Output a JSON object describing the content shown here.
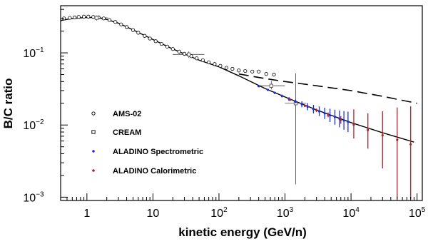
{
  "chart_data": {
    "type": "scatter",
    "title": "",
    "xlabel": "kinetic energy (GeV/n)",
    "ylabel": "B/C ratio",
    "xscale": "log",
    "yscale": "log",
    "xlim": [
      0.4,
      120000
    ],
    "ylim": [
      0.0009,
      0.45
    ],
    "grid": false,
    "legend_position": "bottom-left",
    "x_ticks": [
      {
        "base": "1",
        "exp": ""
      },
      {
        "base": "10",
        "exp": ""
      },
      {
        "base": "10",
        "exp": "2"
      },
      {
        "base": "10",
        "exp": "3"
      },
      {
        "base": "10",
        "exp": "4"
      },
      {
        "base": "10",
        "exp": "5"
      }
    ],
    "y_ticks": [
      {
        "base": "10",
        "exp": "−3"
      },
      {
        "base": "10",
        "exp": "−2"
      },
      {
        "base": "10",
        "exp": "−1"
      }
    ],
    "legend": [
      {
        "label": "AMS-02",
        "marker": "open-circle",
        "color": "#000000"
      },
      {
        "label": "CREAM",
        "marker": "open-square",
        "color": "#000000"
      },
      {
        "label": "ALADINO Spectrometric",
        "marker": "dot",
        "color": "#1a2de6"
      },
      {
        "label": "ALADINO Calorimetric",
        "marker": "dot",
        "color": "#b0232a"
      }
    ],
    "colors": {
      "ams02": "#000000",
      "cream": "#444444",
      "spectrometric": "#1a2de6",
      "calorimetric": "#b0232a",
      "axis": "#000000"
    },
    "series": [
      {
        "name": "AMS-02",
        "marker": "open-circle",
        "points": [
          {
            "x": 0.45,
            "y": 0.3
          },
          {
            "x": 0.55,
            "y": 0.305
          },
          {
            "x": 0.65,
            "y": 0.31
          },
          {
            "x": 0.75,
            "y": 0.315
          },
          {
            "x": 0.9,
            "y": 0.318
          },
          {
            "x": 1.05,
            "y": 0.318
          },
          {
            "x": 1.25,
            "y": 0.315
          },
          {
            "x": 1.5,
            "y": 0.31
          },
          {
            "x": 1.8,
            "y": 0.3
          },
          {
            "x": 2.2,
            "y": 0.285
          },
          {
            "x": 2.7,
            "y": 0.268
          },
          {
            "x": 3.3,
            "y": 0.248
          },
          {
            "x": 4,
            "y": 0.228
          },
          {
            "x": 5,
            "y": 0.207
          },
          {
            "x": 6,
            "y": 0.19
          },
          {
            "x": 7.5,
            "y": 0.172
          },
          {
            "x": 9,
            "y": 0.158
          },
          {
            "x": 11,
            "y": 0.145
          },
          {
            "x": 13.5,
            "y": 0.133
          },
          {
            "x": 16.5,
            "y": 0.122
          },
          {
            "x": 20,
            "y": 0.113
          },
          {
            "x": 25,
            "y": 0.104
          },
          {
            "x": 30,
            "y": 0.097
          },
          {
            "x": 38,
            "y": 0.09
          },
          {
            "x": 46,
            "y": 0.084
          },
          {
            "x": 57,
            "y": 0.079
          },
          {
            "x": 70,
            "y": 0.074
          },
          {
            "x": 86,
            "y": 0.07
          },
          {
            "x": 105,
            "y": 0.066
          },
          {
            "x": 130,
            "y": 0.062
          },
          {
            "x": 160,
            "y": 0.06
          },
          {
            "x": 200,
            "y": 0.057
          },
          {
            "x": 250,
            "y": 0.056
          },
          {
            "x": 320,
            "y": 0.055
          },
          {
            "x": 400,
            "y": 0.055
          },
          {
            "x": 520,
            "y": 0.051
          },
          {
            "x": 680,
            "y": 0.05
          }
        ]
      },
      {
        "name": "CREAM",
        "marker": "open-square",
        "points": [
          {
            "x": 1.4,
            "y": 0.305,
            "xlo": 0.9,
            "xhi": 2.1,
            "ylo": 0.28,
            "yhi": 0.33
          },
          {
            "x": 35,
            "y": 0.095,
            "xlo": 20,
            "xhi": 60,
            "ylo": 0.085,
            "yhi": 0.105
          },
          {
            "x": 620,
            "y": 0.035,
            "xlo": 380,
            "xhi": 1000,
            "ylo": 0.031,
            "yhi": 0.041
          },
          {
            "x": 1450,
            "y": 0.02,
            "xlo": 1000,
            "xhi": 2100,
            "ylo": 0.0015,
            "yhi": 0.052
          }
        ]
      },
      {
        "name": "ALADINO Spectrometric",
        "marker": "dot",
        "points": [
          {
            "x": 400,
            "y": 0.0345,
            "ylo": 0.0336,
            "yhi": 0.0354
          },
          {
            "x": 550,
            "y": 0.0307,
            "ylo": 0.0298,
            "yhi": 0.0316
          },
          {
            "x": 700,
            "y": 0.0279,
            "ylo": 0.0269,
            "yhi": 0.0289
          },
          {
            "x": 900,
            "y": 0.0252,
            "ylo": 0.0241,
            "yhi": 0.0264
          },
          {
            "x": 1150,
            "y": 0.0229,
            "ylo": 0.0216,
            "yhi": 0.0243
          },
          {
            "x": 1450,
            "y": 0.0209,
            "ylo": 0.0195,
            "yhi": 0.0226
          },
          {
            "x": 1800,
            "y": 0.0193,
            "ylo": 0.0176,
            "yhi": 0.0213
          },
          {
            "x": 2200,
            "y": 0.0179,
            "ylo": 0.016,
            "yhi": 0.0201
          },
          {
            "x": 2700,
            "y": 0.0166,
            "ylo": 0.0145,
            "yhi": 0.019
          },
          {
            "x": 3300,
            "y": 0.0155,
            "ylo": 0.0133,
            "yhi": 0.0181
          },
          {
            "x": 4000,
            "y": 0.0145,
            "ylo": 0.0121,
            "yhi": 0.0174
          },
          {
            "x": 4800,
            "y": 0.0136,
            "ylo": 0.011,
            "yhi": 0.0168
          },
          {
            "x": 5700,
            "y": 0.0129,
            "ylo": 0.0101,
            "yhi": 0.0163
          },
          {
            "x": 6700,
            "y": 0.0122,
            "ylo": 0.0093,
            "yhi": 0.0159
          },
          {
            "x": 7800,
            "y": 0.0116,
            "ylo": 0.0086,
            "yhi": 0.0156
          },
          {
            "x": 9000,
            "y": 0.0111,
            "ylo": 0.008,
            "yhi": 0.0153
          }
        ]
      },
      {
        "name": "ALADINO Calorimetric",
        "marker": "dot",
        "points": [
          {
            "x": 1200,
            "y": 0.0225,
            "ylo": 0.0217,
            "yhi": 0.0233
          },
          {
            "x": 2000,
            "y": 0.0185,
            "ylo": 0.0177,
            "yhi": 0.0193
          },
          {
            "x": 3000,
            "y": 0.016,
            "ylo": 0.0151,
            "yhi": 0.0169
          },
          {
            "x": 4500,
            "y": 0.0138,
            "ylo": 0.0128,
            "yhi": 0.0149
          },
          {
            "x": 7000,
            "y": 0.0118,
            "ylo": 0.0104,
            "yhi": 0.0132
          },
          {
            "x": 11000,
            "y": 0.0101,
            "ylo": 0.0065,
            "yhi": 0.0165
          },
          {
            "x": 18000,
            "y": 0.0085,
            "ylo": 0.0047,
            "yhi": 0.0145
          },
          {
            "x": 30000,
            "y": 0.0072,
            "ylo": 0.0025,
            "yhi": 0.0155
          },
          {
            "x": 50000,
            "y": 0.0062,
            "ylo": 0.00095,
            "yhi": 0.0175
          },
          {
            "x": 80000,
            "y": 0.0054,
            "ylo": 0.00095,
            "yhi": 0.0182
          }
        ]
      }
    ],
    "curves": [
      {
        "style": "solid",
        "points": [
          {
            "x": 0.4,
            "y": 0.28
          },
          {
            "x": 0.6,
            "y": 0.3
          },
          {
            "x": 1,
            "y": 0.31
          },
          {
            "x": 1.5,
            "y": 0.305
          },
          {
            "x": 2,
            "y": 0.29
          },
          {
            "x": 3,
            "y": 0.258
          },
          {
            "x": 5,
            "y": 0.208
          },
          {
            "x": 10,
            "y": 0.153
          },
          {
            "x": 20,
            "y": 0.113
          },
          {
            "x": 50,
            "y": 0.079
          },
          {
            "x": 100,
            "y": 0.064
          },
          {
            "x": 200,
            "y": 0.048
          },
          {
            "x": 500,
            "y": 0.032
          },
          {
            "x": 1000,
            "y": 0.0245
          },
          {
            "x": 3000,
            "y": 0.0162
          },
          {
            "x": 10000,
            "y": 0.0108
          },
          {
            "x": 30000,
            "y": 0.0078
          },
          {
            "x": 90000,
            "y": 0.0058
          }
        ]
      },
      {
        "style": "dashed",
        "points": [
          {
            "x": 200,
            "y": 0.051
          },
          {
            "x": 500,
            "y": 0.044
          },
          {
            "x": 1000,
            "y": 0.04
          },
          {
            "x": 3000,
            "y": 0.035
          },
          {
            "x": 10000,
            "y": 0.03
          },
          {
            "x": 30000,
            "y": 0.025
          },
          {
            "x": 100000,
            "y": 0.02
          }
        ]
      }
    ]
  }
}
